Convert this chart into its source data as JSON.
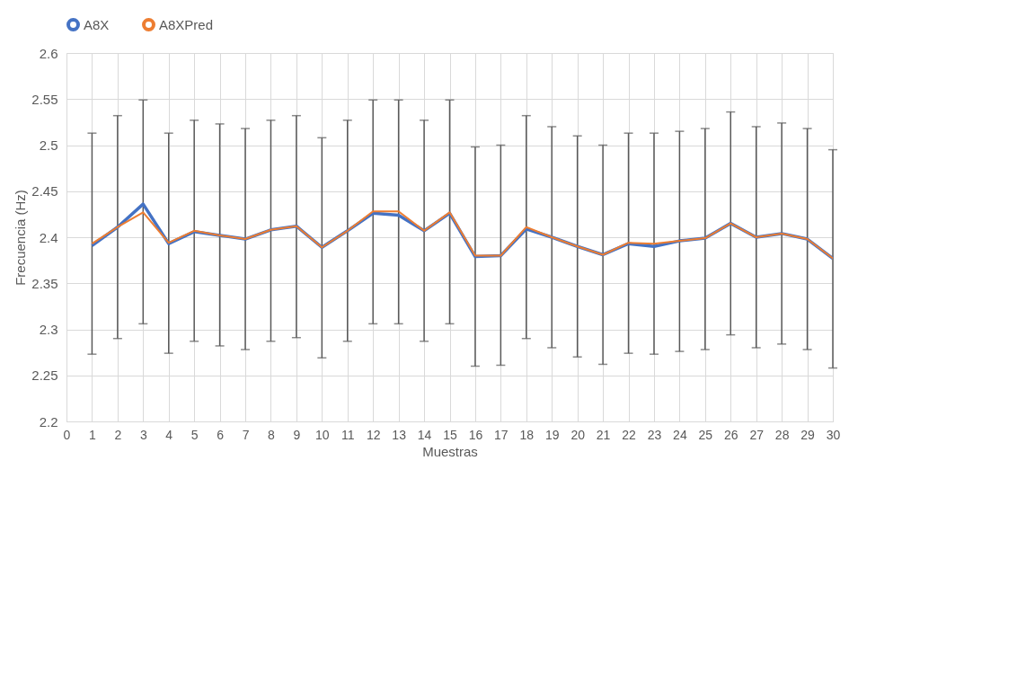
{
  "chart_data": {
    "type": "line",
    "xlabel": "Muestras",
    "ylabel": "Frecuencia (Hz)",
    "x": [
      1,
      2,
      3,
      4,
      5,
      6,
      7,
      8,
      9,
      10,
      11,
      12,
      13,
      14,
      15,
      16,
      17,
      18,
      19,
      20,
      21,
      22,
      23,
      24,
      25,
      26,
      27,
      28,
      29,
      30
    ],
    "series": [
      {
        "name": "A8X",
        "color": "#4472c4",
        "values": [
          2.391,
          2.411,
          2.436,
          2.393,
          2.406,
          2.402,
          2.398,
          2.408,
          2.412,
          2.389,
          2.407,
          2.426,
          2.424,
          2.407,
          2.426,
          2.379,
          2.38,
          2.409,
          2.4,
          2.39,
          2.381,
          2.393,
          2.39,
          2.396,
          2.399,
          2.415,
          2.4,
          2.404,
          2.398,
          2.377
        ],
        "errors": [
          [
            2.273,
            2.513
          ],
          [
            2.29,
            2.532
          ],
          [
            2.306,
            2.549
          ],
          [
            2.274,
            2.513
          ],
          [
            2.287,
            2.527
          ],
          [
            2.282,
            2.523
          ],
          [
            2.278,
            2.518
          ],
          [
            2.287,
            2.527
          ],
          [
            2.291,
            2.532
          ],
          [
            2.269,
            2.508
          ],
          [
            2.287,
            2.527
          ],
          [
            2.306,
            2.549
          ],
          [
            2.306,
            2.549
          ],
          [
            2.287,
            2.527
          ],
          [
            2.306,
            2.549
          ],
          [
            2.26,
            2.498
          ],
          [
            2.261,
            2.5
          ],
          [
            2.29,
            2.532
          ],
          [
            2.28,
            2.52
          ],
          [
            2.27,
            2.51
          ],
          [
            2.262,
            2.5
          ],
          [
            2.274,
            2.513
          ],
          [
            2.273,
            2.513
          ],
          [
            2.276,
            2.515
          ],
          [
            2.278,
            2.518
          ],
          [
            2.294,
            2.536
          ],
          [
            2.28,
            2.52
          ],
          [
            2.284,
            2.524
          ],
          [
            2.278,
            2.518
          ],
          [
            2.258,
            2.495
          ]
        ]
      },
      {
        "name": "A8XPred",
        "color": "#ed7d31",
        "values": [
          2.393,
          2.411,
          2.427,
          2.394,
          2.407,
          2.402,
          2.398,
          2.408,
          2.412,
          2.389,
          2.407,
          2.428,
          2.428,
          2.407,
          2.427,
          2.38,
          2.38,
          2.411,
          2.4,
          2.39,
          2.381,
          2.394,
          2.393,
          2.396,
          2.399,
          2.415,
          2.4,
          2.404,
          2.398,
          2.377
        ]
      }
    ],
    "xlim": [
      0,
      30
    ],
    "xticks": [
      0,
      1,
      2,
      3,
      4,
      5,
      6,
      7,
      8,
      9,
      10,
      11,
      12,
      13,
      14,
      15,
      16,
      17,
      18,
      19,
      20,
      21,
      22,
      23,
      24,
      25,
      26,
      27,
      28,
      29,
      30
    ],
    "ylim": [
      2.2,
      2.6
    ],
    "yticks": [
      2.2,
      2.25,
      2.3,
      2.35,
      2.4,
      2.45,
      2.5,
      2.55,
      2.6
    ],
    "grid": true,
    "legend": "top",
    "marker": "none",
    "line_style": "solid"
  }
}
